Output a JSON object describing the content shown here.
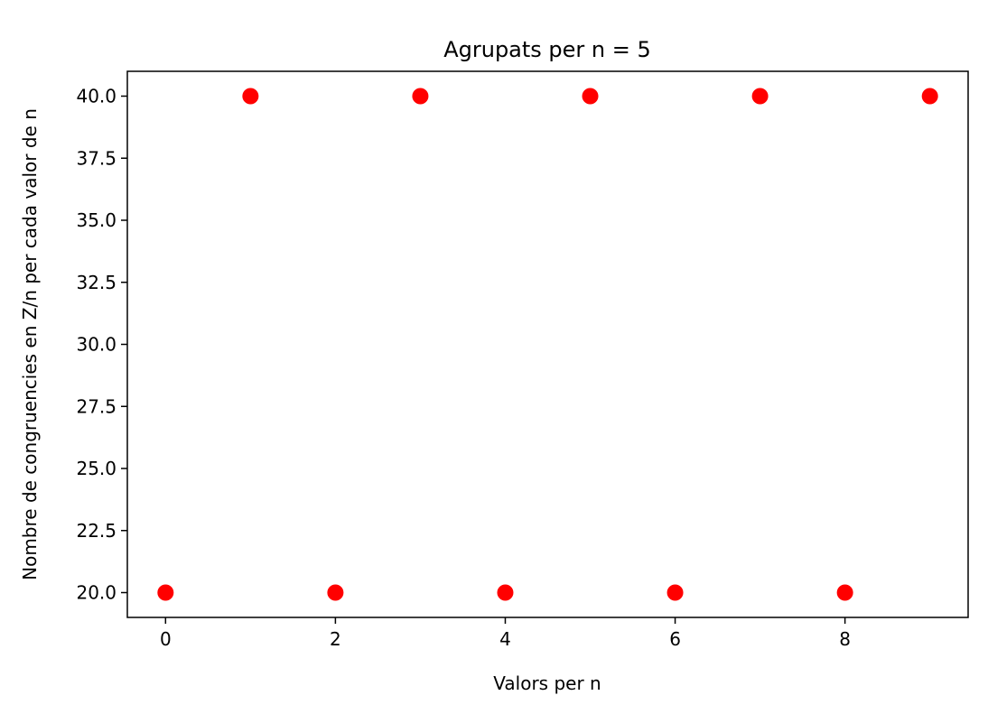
{
  "chart_data": {
    "type": "scatter",
    "title": "Agrupats per n = 5",
    "xlabel": "Valors per n",
    "ylabel": "Nombre de congruencies en Z/n per cada valor de n",
    "xlim": [
      -0.45,
      9.45
    ],
    "ylim": [
      19.0,
      41.0
    ],
    "xticks": [
      0,
      2,
      4,
      6,
      8
    ],
    "xtick_labels": [
      "0",
      "2",
      "4",
      "6",
      "8"
    ],
    "yticks": [
      20.0,
      22.5,
      25.0,
      27.5,
      30.0,
      32.5,
      35.0,
      37.5,
      40.0
    ],
    "ytick_labels": [
      "20.0",
      "22.5",
      "25.0",
      "27.5",
      "30.0",
      "32.5",
      "35.0",
      "37.5",
      "40.0"
    ],
    "grid": false,
    "marker_color": "#ff0000",
    "x": [
      0,
      1,
      2,
      3,
      4,
      5,
      6,
      7,
      8,
      9
    ],
    "y": [
      20,
      40,
      20,
      40,
      20,
      40,
      20,
      40,
      20,
      40
    ]
  }
}
